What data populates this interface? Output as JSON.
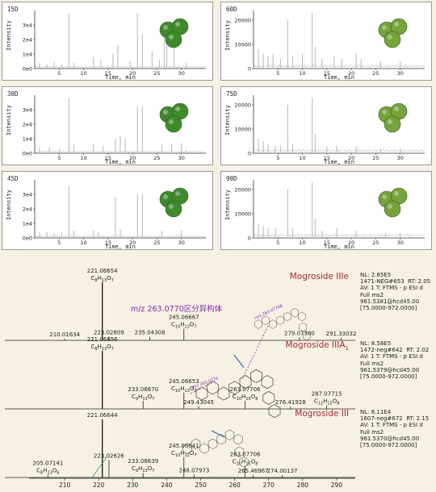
{
  "colors": {
    "background": "#f7f1e3",
    "trace": "#bdbdbd",
    "axis": "#333333",
    "ms_line": "#222222",
    "compound_label": "#9b2a3a",
    "annotation": "#7b2aa8",
    "arrow_blue": "#2f5fc4",
    "arrow_green": "#3aa84a"
  },
  "chromatograms": {
    "xlabel": "Time, min",
    "ylabel": "Intensity",
    "panels": [
      {
        "label": "15D",
        "yticks": [
          "0e0",
          "1e4",
          "2e4",
          "3e4"
        ],
        "ymax": 40000
      },
      {
        "label": "60D",
        "yticks": [
          "0",
          "10000",
          "20000"
        ],
        "ymax": 24000
      },
      {
        "label": "30D",
        "yticks": [
          "0e0",
          "1e4",
          "2e4",
          "3e4"
        ],
        "ymax": 40000
      },
      {
        "label": "75D",
        "yticks": [
          "0",
          "10000",
          "20000"
        ],
        "ymax": 24000
      },
      {
        "label": "45D",
        "yticks": [
          "0e0",
          "1e4",
          "2e4",
          "3e4"
        ],
        "ymax": 40000
      },
      {
        "label": "90D",
        "yticks": [
          "0",
          "10000",
          "20000"
        ],
        "ymax": 24000
      }
    ],
    "xticks": [
      "5",
      "10",
      "15",
      "20",
      "25",
      "30"
    ]
  },
  "chart_data": [
    {
      "type": "line",
      "description_ref": "chromatogram",
      "x_unit": "min",
      "xlim": [
        0,
        35
      ],
      "series": [
        {
          "name": "15D",
          "peaks": [
            [
              1,
              4000
            ],
            [
              2.5,
              3000
            ],
            [
              4,
              4500
            ],
            [
              5.5,
              3000
            ],
            [
              7,
              38000
            ],
            [
              8,
              4000
            ],
            [
              12,
              8000
            ],
            [
              13.5,
              6000
            ],
            [
              16,
              10000
            ],
            [
              17,
              16000
            ],
            [
              19.5,
              5000
            ],
            [
              21,
              38000
            ],
            [
              22,
              24000
            ],
            [
              24,
              12000
            ],
            [
              25.5,
              6000
            ],
            [
              26.5,
              22000
            ],
            [
              27,
              26000
            ],
            [
              28.5,
              30000
            ],
            [
              31,
              4000
            ]
          ]
        },
        {
          "name": "60D",
          "peaks": [
            [
              1,
              8000
            ],
            [
              2,
              6000
            ],
            [
              3,
              5000
            ],
            [
              4,
              6000
            ],
            [
              5.5,
              4000
            ],
            [
              7,
              20000
            ],
            [
              8,
              5000
            ],
            [
              10,
              6000
            ],
            [
              12,
              23000
            ],
            [
              12.6,
              9000
            ],
            [
              14,
              4000
            ],
            [
              16.5,
              5000
            ],
            [
              18,
              4000
            ],
            [
              21,
              6000
            ],
            [
              22,
              4000
            ],
            [
              26,
              3000
            ],
            [
              30,
              3000
            ]
          ]
        },
        {
          "name": "30D",
          "peaks": [
            [
              1,
              4000
            ],
            [
              3,
              4000
            ],
            [
              5,
              3000
            ],
            [
              7,
              38000
            ],
            [
              8,
              6000
            ],
            [
              12,
              6000
            ],
            [
              14,
              5000
            ],
            [
              16.5,
              10000
            ],
            [
              17.5,
              12000
            ],
            [
              18.5,
              10000
            ],
            [
              21,
              32000
            ],
            [
              22,
              32000
            ],
            [
              26,
              6000
            ],
            [
              28,
              6000
            ],
            [
              30,
              7000
            ],
            [
              31,
              2000
            ]
          ]
        },
        {
          "name": "75D",
          "peaks": [
            [
              1,
              6000
            ],
            [
              2,
              5000
            ],
            [
              3,
              4000
            ],
            [
              4.5,
              3000
            ],
            [
              5.5,
              3000
            ],
            [
              7,
              20000
            ],
            [
              8,
              4000
            ],
            [
              12,
              23000
            ],
            [
              12.6,
              8000
            ],
            [
              15,
              3000
            ],
            [
              17,
              3000
            ],
            [
              21,
              3000
            ],
            [
              26,
              2000
            ],
            [
              30,
              2000
            ]
          ]
        },
        {
          "name": "45D",
          "peaks": [
            [
              1,
              4000
            ],
            [
              2.5,
              4000
            ],
            [
              4,
              3000
            ],
            [
              5.5,
              4000
            ],
            [
              7,
              36000
            ],
            [
              8,
              5000
            ],
            [
              12,
              5000
            ],
            [
              13,
              4000
            ],
            [
              16.5,
              28000
            ],
            [
              17.5,
              6000
            ],
            [
              21,
              30000
            ],
            [
              22,
              30000
            ],
            [
              26,
              5000
            ],
            [
              30,
              5000
            ]
          ]
        },
        {
          "name": "90D",
          "peaks": [
            [
              1,
              6000
            ],
            [
              2,
              5000
            ],
            [
              3,
              4000
            ],
            [
              4.5,
              4000
            ],
            [
              7,
              20000
            ],
            [
              8,
              4000
            ],
            [
              12,
              23000
            ],
            [
              12.6,
              8000
            ],
            [
              14,
              3000
            ],
            [
              17,
              4000
            ],
            [
              21,
              3000
            ],
            [
              27,
              2000
            ],
            [
              30,
              2000
            ]
          ]
        }
      ]
    },
    {
      "type": "bar",
      "description_ref": "mass spectra",
      "xlim": [
        200,
        295
      ],
      "xticks": [
        "210",
        "220",
        "230",
        "240",
        "250",
        "260",
        "270",
        "280",
        "290"
      ],
      "spectra": [
        {
          "name": "Mogroside IIIe",
          "nl": "NL: 2.85E5",
          "scan": "1471-NEG#653  RT: 2.05",
          "av": "AV: 1 T: FTMS - p ESI d",
          "full": "Full ms2",
          "precursor": "961.5381@hcd45.00",
          "range": "[75.0000-972.0000]",
          "peaks": [
            {
              "mz": 210.01634,
              "rel": 3,
              "label": "210.01634"
            },
            {
              "mz": 221.06654,
              "rel": 100,
              "label": "221.06654",
              "formula": [
                "C",
                "8",
                "H",
                "13",
                "O",
                "7"
              ]
            },
            {
              "mz": 223.02809,
              "rel": 6,
              "label": "223.02809"
            },
            {
              "mz": 235.04308,
              "rel": 6,
              "label": "235.04308"
            },
            {
              "mz": 245.06667,
              "rel": 20,
              "label": "245.06667",
              "formula": [
                "C",
                "10",
                "H",
                "13",
                "O",
                "7"
              ]
            },
            {
              "mz": 279.0738,
              "rel": 5,
              "label": "279.07380"
            },
            {
              "mz": 291.33032,
              "rel": 4,
              "label": "291.33032"
            }
          ]
        },
        {
          "name": "Mogroside IIIA",
          "name_sub": "1",
          "nl": "NL: 8.58E5",
          "scan": "1472-neg#642  RT: 2.02",
          "av": "AV: 1 T: FTMS - p ESI d",
          "full": "Full ms2",
          "precursor": "961.5379@hcd45.00",
          "range": "[75.0000-972.0000]",
          "peaks": [
            {
              "mz": 221.06656,
              "rel": 100,
              "label": "221.06656",
              "formula": [
                "C",
                "8",
                "H",
                "13",
                "O",
                "7"
              ]
            },
            {
              "mz": 233.0667,
              "rel": 14,
              "label": "233.06670",
              "formula": [
                "C",
                "9",
                "H",
                "13",
                "O",
                "7"
              ]
            },
            {
              "mz": 245.06653,
              "rel": 28,
              "label": "245.06653",
              "formula": [
                "C",
                "10",
                "H",
                "13",
                "O",
                "7"
              ]
            },
            {
              "mz": 249.43045,
              "rel": 4,
              "label": "249.43045"
            },
            {
              "mz": 263.07706,
              "rel": 14,
              "label": "263.07706",
              "formula": [
                "C",
                "10",
                "H",
                "15",
                "O",
                "8"
              ]
            },
            {
              "mz": 276.41928,
              "rel": 4,
              "label": "276.41928"
            },
            {
              "mz": 287.07715,
              "rel": 6,
              "label": "287.07715",
              "formula": [
                "C",
                "12",
                "H",
                "15",
                "O",
                "8"
              ]
            }
          ]
        },
        {
          "name": "Mogroside III",
          "nl": "NL: 8.11E4",
          "scan": "1607-neg#672  RT: 2.15",
          "av": "AV: 1 T: FTMS - p ESI d",
          "full": "Full ms2",
          "precursor": "961.5370@hcd45.00",
          "range": "[75.0000-972.0000]",
          "peaks": [
            {
              "mz": 205.07141,
              "rel": 5,
              "label": "205.07141",
              "formula": [
                "C",
                "8",
                "H",
                "13",
                "O",
                "6"
              ]
            },
            {
              "mz": 221.06644,
              "rel": 100,
              "label": "221.06644"
            },
            {
              "mz": 223.02626,
              "rel": 30,
              "label": "223.02626"
            },
            {
              "mz": 233.06639,
              "rel": 8,
              "label": "233.06639",
              "formula": [
                "C",
                "9",
                "H",
                "13",
                "O",
                "7"
              ]
            },
            {
              "mz": 245.06641,
              "rel": 35,
              "label": "245.06641",
              "formula": [
                "C",
                "10",
                "H",
                "13",
                "O",
                "7"
              ]
            },
            {
              "mz": 248.07973,
              "rel": 5,
              "label": "248.07973"
            },
            {
              "mz": 263.07706,
              "rel": 20,
              "label": "263.07706",
              "formula": [
                "C",
                "10",
                "H",
                "15",
                "O",
                "8"
              ]
            },
            {
              "mz": 265.46967,
              "rel": 4,
              "label": "265.46967"
            },
            {
              "mz": 274.00137,
              "rel": 4,
              "label": "274.00137"
            }
          ]
        }
      ],
      "annotation": "m/z 263.0770区分异构体",
      "structure_labels": [
        "m/z 263.07706",
        "m/z 263.0770"
      ]
    }
  ]
}
